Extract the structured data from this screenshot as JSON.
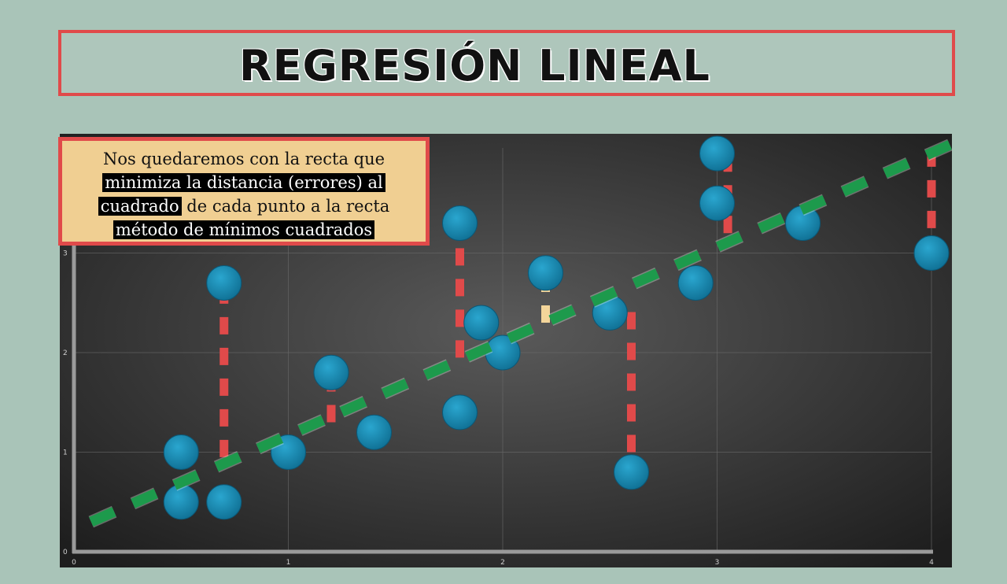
{
  "page": {
    "title": "REGRESIÓN LINEAL",
    "note": {
      "line1": "Nos quedaremos con la recta que",
      "line2_hl": "minimiza la distancia (errores) al",
      "line3_hl": "cuadrado",
      "line3_rest": " de cada punto a la recta",
      "line4_hl": "método de mínimos cuadrados"
    }
  },
  "colors": {
    "background": "#a9c4b8",
    "frame": "#e04a4a",
    "note_bg": "#f0cf92",
    "point": "#1e8fb3",
    "regression_line": "#1d9a4c",
    "error_segment": "#e04a4a",
    "small_error_segment": "#f3d59a"
  },
  "chart_data": {
    "type": "scatter",
    "xlim": [
      0,
      4
    ],
    "ylim": [
      0,
      4.2
    ],
    "xticks": [
      "0",
      "1",
      "2",
      "3",
      "4"
    ],
    "yticks": [
      "0",
      "1",
      "2",
      "3"
    ],
    "grid": true,
    "points": [
      {
        "x": 0.5,
        "y": 0.5
      },
      {
        "x": 0.5,
        "y": 1.0
      },
      {
        "x": 0.7,
        "y": 0.5
      },
      {
        "x": 0.7,
        "y": 2.7
      },
      {
        "x": 1.0,
        "y": 1.0
      },
      {
        "x": 1.2,
        "y": 1.8
      },
      {
        "x": 1.4,
        "y": 1.2
      },
      {
        "x": 1.8,
        "y": 1.4
      },
      {
        "x": 1.8,
        "y": 3.3
      },
      {
        "x": 1.9,
        "y": 2.3
      },
      {
        "x": 2.0,
        "y": 2.0
      },
      {
        "x": 2.2,
        "y": 2.8
      },
      {
        "x": 2.5,
        "y": 2.4
      },
      {
        "x": 2.6,
        "y": 0.8
      },
      {
        "x": 2.9,
        "y": 2.7
      },
      {
        "x": 3.0,
        "y": 3.5
      },
      {
        "x": 3.0,
        "y": 4.0
      },
      {
        "x": 3.4,
        "y": 3.3
      },
      {
        "x": 4.0,
        "y": 3.0
      }
    ],
    "regression_line": {
      "x": [
        0.08,
        4.1
      ],
      "y": [
        0.3,
        4.1
      ]
    },
    "error_segments": [
      {
        "x": 0.7,
        "y1": 0.95,
        "y2": 2.6,
        "style": "red"
      },
      {
        "x": 1.2,
        "y1": 1.3,
        "y2": 1.65,
        "style": "red"
      },
      {
        "x": 1.8,
        "y1": 1.95,
        "y2": 3.2,
        "style": "red"
      },
      {
        "x": 2.2,
        "y1": 2.3,
        "y2": 2.65,
        "style": "yellow"
      },
      {
        "x": 2.6,
        "y1": 1.0,
        "y2": 2.45,
        "style": "red"
      },
      {
        "x": 3.05,
        "y1": 3.2,
        "y2": 3.9,
        "style": "red"
      },
      {
        "x": 4.0,
        "y1": 3.25,
        "y2": 4.1,
        "style": "red"
      }
    ]
  }
}
